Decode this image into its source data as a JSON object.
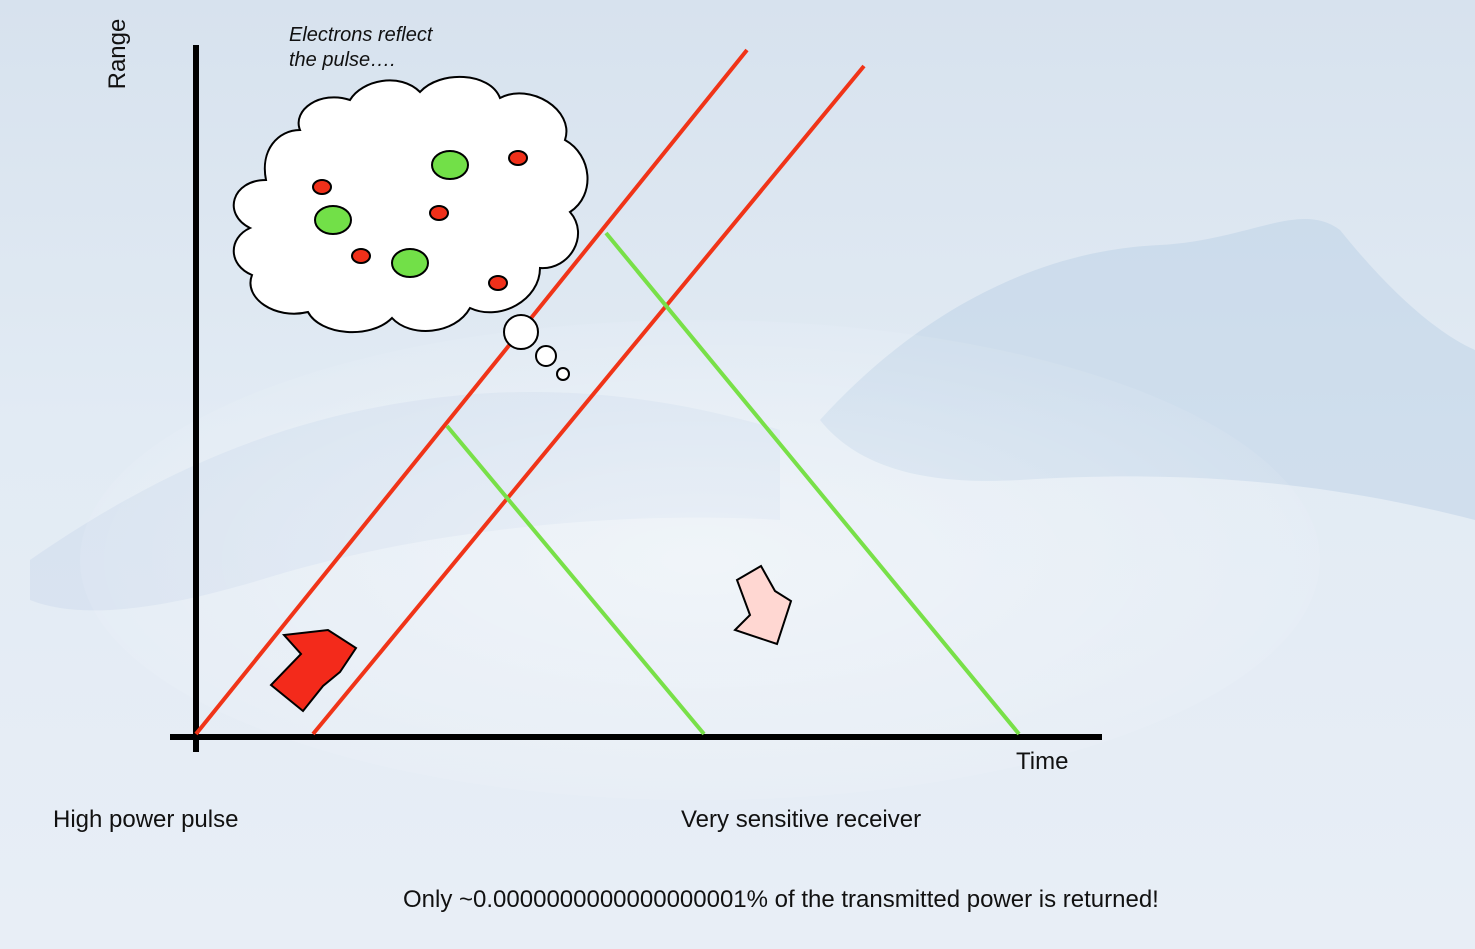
{
  "labels": {
    "y_axis": "Range",
    "x_axis": "Time",
    "bubble_note_line1": "Electrons reflect",
    "bubble_note_line2": "the pulse….",
    "transmitter": "High power pulse",
    "receiver": "Very sensitive receiver",
    "footnote": "Only ~0.0000000000000000001% of the transmitted power is returned!"
  },
  "colors": {
    "pulse_line": "#f03418",
    "echo_line": "#78e048",
    "axis": "#000000",
    "electron_small": "#f0301a",
    "electron_large": "#72e048",
    "cloud_fill": "#ffffff",
    "up_arrow": "#f32a1b",
    "down_arrow": "#ffd7d2",
    "background": "#dfe8f1",
    "left_strip_top": "#7bd0ea",
    "left_strip_bottom": "#78c25a"
  },
  "icons": {
    "transmit_arrow": "up-right-arrow",
    "receive_arrow": "down-right-arrow",
    "thought_bubble": "cloud-thought-bubble"
  }
}
